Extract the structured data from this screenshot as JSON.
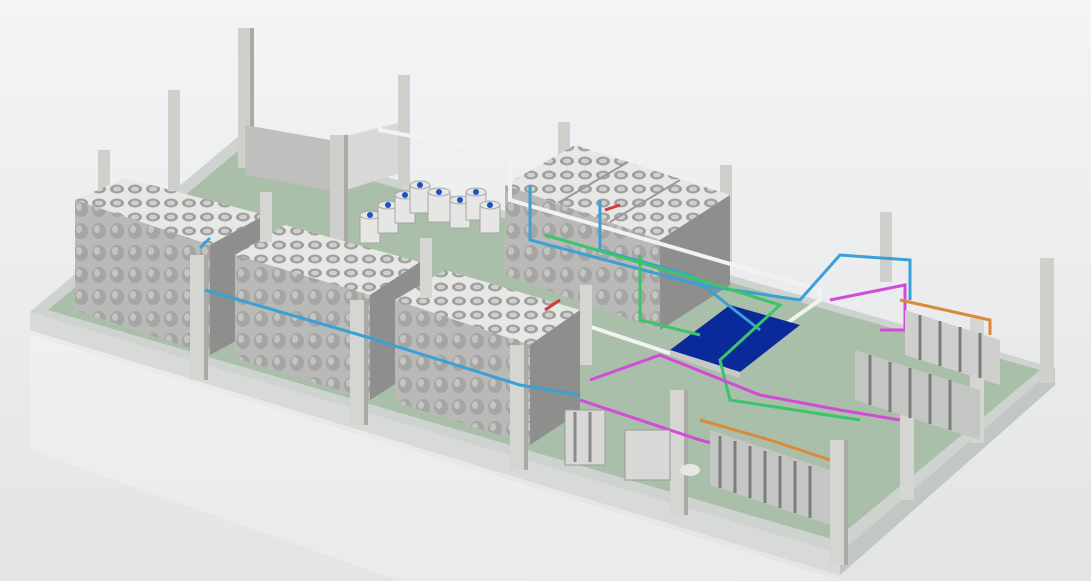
{
  "image": {
    "kind": "3D CAD render of a water treatment plant layout",
    "colors": {
      "background": "#eef0f2",
      "slab": "#c9cdc9",
      "floor": "#a9bfa9",
      "tank": "#b7b8b6",
      "tank_dark": "#8e8f8d",
      "column": "#cfd0cc",
      "pipe_blue": "#3aa0d6",
      "pipe_green": "#3cc46a",
      "pipe_magenta": "#d24bd8",
      "pipe_white": "#f2f2f2",
      "pipe_orange": "#d98a3c",
      "pipe_red": "#d23b3b",
      "pool_water": "#0b2a9a"
    },
    "objects": {
      "tanks_left": 3,
      "tanks_back": 3,
      "chemical_drums": 8,
      "membrane_skids": 4
    }
  }
}
